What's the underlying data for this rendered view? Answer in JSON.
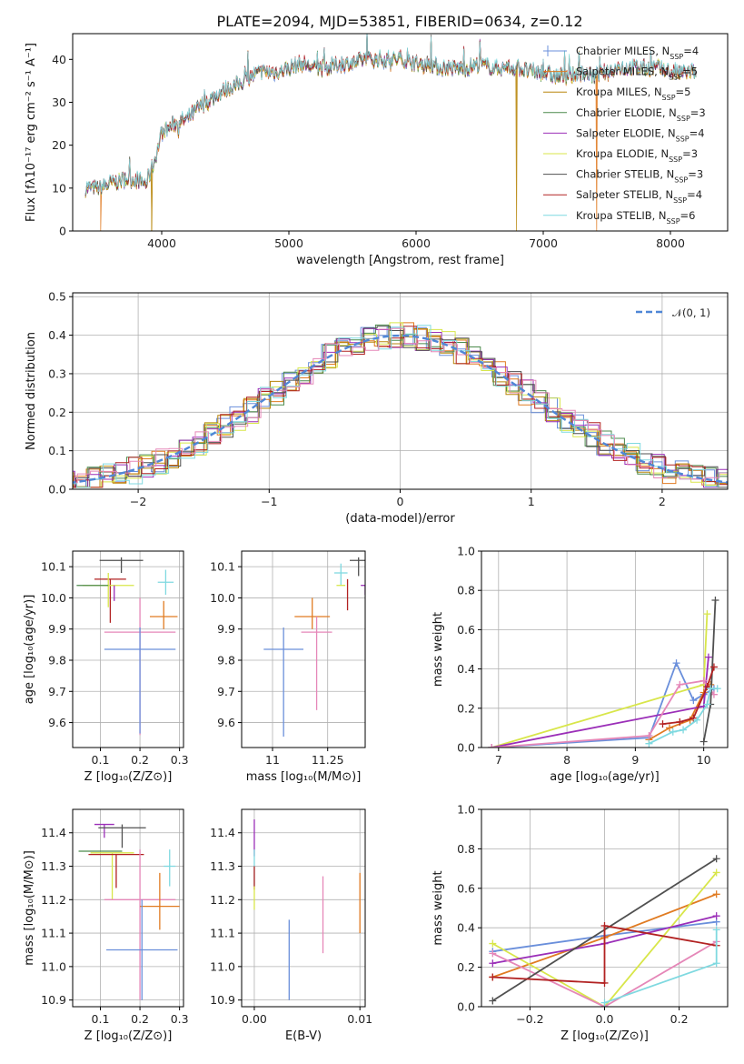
{
  "title": "PLATE=2094, MJD=53851, FIBERID=0634, z=0.12",
  "colors": {
    "Chabrier MILES": "#6a8fdb",
    "Salpeter MILES": "#e07b22",
    "Kroupa MILES": "#b8860b",
    "Chabrier ELODIE": "#4c8a4c",
    "Salpeter ELODIE": "#9b2fb8",
    "Kroupa ELODIE": "#d8e64a",
    "Chabrier STELIB": "#505050",
    "Salpeter STELIB": "#b22222",
    "Kroupa STELIB": "#7fd9e0",
    "Pink": "#e587b8",
    "Normal": "#4f86d6"
  },
  "chart_data": [
    {
      "id": "spectrum",
      "type": "line",
      "xlabel": "wavelength [Angstrom, rest frame]",
      "ylabel": "Flux [fλ10⁻¹⁷ erg cm⁻² s⁻¹ A⁻¹]",
      "xlim": [
        3300,
        8450
      ],
      "ylim": [
        0,
        46
      ],
      "xticks": [
        4000,
        5000,
        6000,
        7000,
        8000
      ],
      "yticks": [
        0,
        10,
        20,
        30,
        40
      ],
      "legend_position": "top-right",
      "legend": [
        "Chabrier MILES, N_SSP=4",
        "Salpeter MILES, N_SSP=5",
        "Kroupa MILES, N_SSP=5",
        "Chabrier ELODIE, N_SSP=3",
        "Salpeter ELODIE, N_SSP=4",
        "Kroupa ELODIE, N_SSP=3",
        "Chabrier STELIB, N_SSP=3",
        "Salpeter STELIB, N_SSP=4",
        "Kroupa STELIB, N_SSP=6"
      ],
      "continuum": [
        [
          3400,
          10
        ],
        [
          3500,
          10
        ],
        [
          3600,
          11
        ],
        [
          3700,
          12
        ],
        [
          3800,
          12
        ],
        [
          3880,
          11
        ],
        [
          3950,
          17
        ],
        [
          4000,
          23
        ],
        [
          4100,
          25
        ],
        [
          4200,
          26
        ],
        [
          4300,
          29
        ],
        [
          4400,
          31
        ],
        [
          4500,
          33
        ],
        [
          4600,
          34
        ],
        [
          4700,
          36
        ],
        [
          4800,
          37
        ],
        [
          4900,
          37
        ],
        [
          5000,
          38
        ],
        [
          5100,
          39
        ],
        [
          5200,
          38
        ],
        [
          5300,
          38
        ],
        [
          5400,
          39
        ],
        [
          5500,
          39
        ],
        [
          5600,
          40
        ],
        [
          5700,
          40
        ],
        [
          5800,
          40
        ],
        [
          5900,
          40
        ],
        [
          6000,
          39
        ],
        [
          6100,
          39
        ],
        [
          6200,
          38
        ],
        [
          6300,
          38
        ],
        [
          6400,
          38
        ],
        [
          6500,
          39
        ],
        [
          6600,
          38
        ],
        [
          6700,
          38
        ],
        [
          6800,
          38
        ],
        [
          6900,
          37
        ],
        [
          7000,
          37
        ],
        [
          7100,
          36
        ],
        [
          7200,
          36
        ],
        [
          7300,
          37
        ],
        [
          7400,
          36
        ],
        [
          7500,
          37
        ],
        [
          7600,
          38
        ],
        [
          7700,
          38
        ],
        [
          7800,
          38
        ],
        [
          7900,
          38
        ],
        [
          8000,
          37
        ],
        [
          8100,
          37
        ],
        [
          8200,
          37
        ]
      ],
      "dropouts": [
        {
          "model": "Salpeter MILES",
          "x": 3520
        },
        {
          "model": "Kroupa MILES",
          "x": 3920
        },
        {
          "model": "Kroupa MILES",
          "x": 6790
        },
        {
          "model": "Salpeter MILES",
          "x": 7420
        }
      ]
    },
    {
      "id": "residuals",
      "type": "histogram",
      "xlabel": "(data-model)/error",
      "ylabel": "Normed distribution",
      "xlim": [
        -2.5,
        2.5
      ],
      "ylim": [
        0,
        0.51
      ],
      "xticks": [
        -2,
        -1,
        0,
        1,
        2
      ],
      "yticks": [
        0.0,
        0.1,
        0.2,
        0.3,
        0.4,
        0.5
      ],
      "legend": [
        "𝒩(0, 1)"
      ],
      "legend_position": "top-right",
      "bin_width": 0.1,
      "reference_curve": "normal(0,1)"
    },
    {
      "id": "age-vs-Z",
      "type": "errorbar",
      "xlabel": "Z [log₁₀(Z/Z⊙)]",
      "ylabel": "age [log₁₀(age/yr)]",
      "xlim": [
        0.03,
        0.31
      ],
      "ylim": [
        9.52,
        10.15
      ],
      "xticks": [
        0.1,
        0.2,
        0.3
      ],
      "yticks": [
        9.6,
        9.7,
        9.8,
        9.9,
        10.0,
        10.1
      ],
      "points": [
        {
          "model": "Chabrier STELIB",
          "x": 0.153,
          "xerr": 0.055,
          "y": 10.12,
          "yerr_lo": 0.04,
          "yerr_hi": 0.01
        },
        {
          "model": "Salpeter STELIB",
          "x": 0.125,
          "xerr": 0.04,
          "y": 10.06,
          "yerr_lo": 0.14,
          "yerr_hi": 0.0
        },
        {
          "model": "Kroupa STELIB",
          "x": 0.265,
          "xerr": 0.02,
          "y": 10.05,
          "yerr_lo": 0.04,
          "yerr_hi": 0.04
        },
        {
          "model": "Kroupa ELODIE",
          "x": 0.12,
          "xerr": 0.065,
          "y": 10.04,
          "yerr_lo": 0.07,
          "yerr_hi": 0.04
        },
        {
          "model": "Chabrier ELODIE",
          "x": 0.08,
          "xerr": 0.04,
          "y": 10.04,
          "yerr_lo": 0.0,
          "yerr_hi": 0.0
        },
        {
          "model": "Salpeter ELODIE",
          "x": 0.135,
          "xerr": 0.0,
          "y": 10.01,
          "yerr_lo": 0.02,
          "yerr_hi": 0.03
        },
        {
          "model": "Salpeter MILES",
          "x": 0.26,
          "xerr": 0.035,
          "y": 9.94,
          "yerr_lo": 0.04,
          "yerr_hi": 0.05
        },
        {
          "model": "Pink",
          "x": 0.2,
          "xerr": 0.09,
          "y": 9.89,
          "yerr_lo": 0.33,
          "yerr_hi": 0.11
        },
        {
          "model": "Chabrier MILES",
          "x": 0.2,
          "xerr": 0.09,
          "y": 9.835,
          "yerr_lo": 0.27,
          "yerr_hi": 0.07
        }
      ]
    },
    {
      "id": "age-vs-mass",
      "type": "errorbar",
      "xlabel": "mass [log₁₀(M/M⊙)]",
      "ylabel": "",
      "xlim": [
        10.86,
        11.42
      ],
      "ylim": [
        9.52,
        10.15
      ],
      "xticks": [
        11.0,
        11.25
      ],
      "yticks": [
        9.6,
        9.7,
        9.8,
        9.9,
        10.0,
        10.1
      ],
      "points": [
        {
          "model": "Chabrier STELIB",
          "x": 11.39,
          "xerr": 0.04,
          "y": 10.12,
          "yerr_lo": 0.05,
          "yerr_hi": 0.01
        },
        {
          "model": "Kroupa STELIB",
          "x": 11.31,
          "xerr": 0.03,
          "y": 10.08,
          "yerr_lo": 0.04,
          "yerr_hi": 0.03
        },
        {
          "model": "Salpeter STELIB",
          "x": 11.34,
          "xerr": 0.0,
          "y": 10.06,
          "yerr_lo": 0.1,
          "yerr_hi": 0.0
        },
        {
          "model": "Kroupa ELODIE",
          "x": 11.31,
          "xerr": 0.02,
          "y": 10.04,
          "yerr_lo": 0.0,
          "yerr_hi": 0.0
        },
        {
          "model": "Salpeter ELODIE",
          "x": 11.42,
          "xerr": 0.02,
          "y": 10.04,
          "yerr_lo": 0.03,
          "yerr_hi": 0.0
        },
        {
          "model": "Salpeter MILES",
          "x": 11.18,
          "xerr": 0.08,
          "y": 9.94,
          "yerr_lo": 0.04,
          "yerr_hi": 0.06
        },
        {
          "model": "Pink",
          "x": 11.2,
          "xerr": 0.07,
          "y": 9.89,
          "yerr_lo": 0.25,
          "yerr_hi": 0.05
        },
        {
          "model": "Chabrier MILES",
          "x": 11.05,
          "xerr": 0.09,
          "y": 9.835,
          "yerr_lo": 0.28,
          "yerr_hi": 0.07
        }
      ]
    },
    {
      "id": "mass-weight-vs-age",
      "type": "line",
      "xlabel": "age [log₁₀(age/yr)]",
      "ylabel": "mass weight",
      "xlim": [
        6.75,
        10.35
      ],
      "ylim": [
        0,
        1.0
      ],
      "xticks": [
        7,
        8,
        9,
        10
      ],
      "yticks": [
        0.0,
        0.2,
        0.4,
        0.6,
        0.8,
        1.0
      ],
      "series": [
        {
          "model": "Chabrier MILES",
          "x": [
            6.9,
            9.2,
            9.6,
            9.85,
            10.0,
            10.15
          ],
          "y": [
            0.0,
            0.05,
            0.43,
            0.24,
            0.27,
            0.3
          ]
        },
        {
          "model": "Salpeter MILES",
          "x": [
            9.2,
            9.5,
            9.8,
            10.0,
            10.1
          ],
          "y": [
            0.04,
            0.1,
            0.14,
            0.28,
            0.32
          ]
        },
        {
          "model": "Kroupa ELODIE",
          "x": [
            6.9,
            10.0,
            10.05
          ],
          "y": [
            0.0,
            0.32,
            0.68
          ]
        },
        {
          "model": "Salpeter ELODIE",
          "x": [
            6.9,
            10.0,
            10.07
          ],
          "y": [
            0.0,
            0.21,
            0.46
          ]
        },
        {
          "model": "Pink",
          "x": [
            6.9,
            9.2,
            9.65,
            10.0,
            10.15
          ],
          "y": [
            0.0,
            0.06,
            0.32,
            0.34,
            0.27
          ]
        },
        {
          "model": "Chabrier STELIB",
          "x": [
            10.0,
            10.1,
            10.17
          ],
          "y": [
            0.03,
            0.22,
            0.75
          ]
        },
        {
          "model": "Salpeter STELIB",
          "x": [
            9.4,
            9.65,
            9.85,
            10.05,
            10.15
          ],
          "y": [
            0.12,
            0.13,
            0.15,
            0.31,
            0.41
          ]
        },
        {
          "model": "Kroupa STELIB",
          "x": [
            9.2,
            9.55,
            9.7,
            9.9,
            10.05,
            10.1,
            10.2
          ],
          "y": [
            0.02,
            0.08,
            0.09,
            0.14,
            0.22,
            0.3,
            0.3
          ]
        }
      ]
    },
    {
      "id": "mass-vs-Z",
      "type": "errorbar",
      "xlabel": "Z [log₁₀(Z/Z⊙)]",
      "ylabel": "mass [log₁₀(M/M⊙)]",
      "xlim": [
        0.03,
        0.31
      ],
      "ylim": [
        10.88,
        11.47
      ],
      "xticks": [
        0.1,
        0.2,
        0.3
      ],
      "yticks": [
        10.9,
        11.0,
        11.1,
        11.2,
        11.3,
        11.4
      ],
      "points": [
        {
          "model": "Salpeter ELODIE",
          "x": 0.11,
          "xerr": 0.025,
          "y": 11.425,
          "yerr_lo": 0.04,
          "yerr_hi": 0.0
        },
        {
          "model": "Chabrier STELIB",
          "x": 0.155,
          "xerr": 0.06,
          "y": 11.415,
          "yerr_lo": 0.06,
          "yerr_hi": 0.01
        },
        {
          "model": "Chabrier ELODIE",
          "x": 0.1,
          "xerr": 0.055,
          "y": 11.345,
          "yerr_lo": 0.0,
          "yerr_hi": 0.0
        },
        {
          "model": "Kroupa ELODIE",
          "x": 0.13,
          "xerr": 0.055,
          "y": 11.34,
          "yerr_lo": 0.14,
          "yerr_hi": 0.0
        },
        {
          "model": "Salpeter STELIB",
          "x": 0.14,
          "xerr": 0.07,
          "y": 11.335,
          "yerr_lo": 0.1,
          "yerr_hi": 0.0
        },
        {
          "model": "Kroupa STELIB",
          "x": 0.275,
          "xerr": 0.015,
          "y": 11.3,
          "yerr_lo": 0.06,
          "yerr_hi": 0.05
        },
        {
          "model": "Pink",
          "x": 0.2,
          "xerr": 0.09,
          "y": 11.2,
          "yerr_lo": 0.3,
          "yerr_hi": 0.15
        },
        {
          "model": "Salpeter MILES",
          "x": 0.25,
          "xerr": 0.05,
          "y": 11.18,
          "yerr_lo": 0.07,
          "yerr_hi": 0.1
        },
        {
          "model": "Chabrier MILES",
          "x": 0.205,
          "xerr": 0.09,
          "y": 11.05,
          "yerr_lo": 0.15,
          "yerr_hi": 0.15
        }
      ]
    },
    {
      "id": "mass-vs-EBV",
      "type": "errorbar",
      "xlabel": "E(B-V)",
      "ylabel": "",
      "xlim": [
        -0.0012,
        0.0105
      ],
      "ylim": [
        10.88,
        11.47
      ],
      "xticks": [
        0.0,
        0.01
      ],
      "xtick_labels": [
        "0.00",
        "0.01"
      ],
      "yticks": [
        10.9,
        11.0,
        11.1,
        11.2,
        11.3,
        11.4
      ],
      "points": [
        {
          "model": "Salpeter ELODIE",
          "x": 0.0,
          "xerr": 0.0,
          "y": 11.38,
          "yerr_lo": 0.05,
          "yerr_hi": 0.06
        },
        {
          "model": "Kroupa STELIB",
          "x": 0.0,
          "xerr": 0.0,
          "y": 11.3,
          "yerr_lo": 0.06,
          "yerr_hi": 0.05
        },
        {
          "model": "Salpeter STELIB",
          "x": 0.0,
          "xerr": 0.0,
          "y": 11.27,
          "yerr_lo": 0.04,
          "yerr_hi": 0.03
        },
        {
          "model": "Kroupa ELODIE",
          "x": 0.0,
          "xerr": 0.0,
          "y": 11.2,
          "yerr_lo": 0.03,
          "yerr_hi": 0.04
        },
        {
          "model": "Chabrier MILES",
          "x": 0.0033,
          "xerr": 0.0,
          "y": 11.02,
          "yerr_lo": 0.12,
          "yerr_hi": 0.12
        },
        {
          "model": "Pink",
          "x": 0.0065,
          "xerr": 0.0,
          "y": 11.15,
          "yerr_lo": 0.11,
          "yerr_hi": 0.12
        },
        {
          "model": "Salpeter MILES",
          "x": 0.01,
          "xerr": 0.0,
          "y": 11.19,
          "yerr_lo": 0.09,
          "yerr_hi": 0.09
        }
      ]
    },
    {
      "id": "mass-weight-vs-Z",
      "type": "line",
      "xlabel": "Z [log₁₀(Z/Z⊙)]",
      "ylabel": "mass weight",
      "xlim": [
        -0.33,
        0.33
      ],
      "ylim": [
        0,
        1.0
      ],
      "xticks": [
        -0.2,
        0.0,
        0.2
      ],
      "xtick_labels": [
        "−0.2",
        "0.0",
        "0.2"
      ],
      "yticks": [
        0.0,
        0.2,
        0.4,
        0.6,
        0.8,
        1.0
      ],
      "series": [
        {
          "model": "Chabrier MILES",
          "x": [
            -0.3,
            0.0,
            0.3
          ],
          "y": [
            0.28,
            0.36,
            0.43
          ]
        },
        {
          "model": "Salpeter MILES",
          "x": [
            -0.3,
            0.0,
            0.3
          ],
          "y": [
            0.15,
            0.35,
            0.57
          ]
        },
        {
          "model": "Kroupa ELODIE",
          "x": [
            -0.3,
            0.0,
            0.3
          ],
          "y": [
            0.32,
            0.0,
            0.68
          ]
        },
        {
          "model": "Salpeter ELODIE",
          "x": [
            -0.3,
            0.0,
            0.3
          ],
          "y": [
            0.22,
            0.32,
            0.46
          ]
        },
        {
          "model": "Pink",
          "x": [
            -0.3,
            0.0,
            0.3
          ],
          "y": [
            0.27,
            0.0,
            0.33
          ]
        },
        {
          "model": "Chabrier STELIB",
          "x": [
            -0.3,
            0.3
          ],
          "y": [
            0.03,
            0.75
          ]
        },
        {
          "model": "Salpeter STELIB",
          "x": [
            -0.3,
            0.0,
            0.0,
            0.3
          ],
          "y": [
            0.15,
            0.12,
            0.41,
            0.31
          ]
        },
        {
          "model": "Kroupa STELIB",
          "x": [
            0.0,
            0.3,
            0.3
          ],
          "y": [
            0.02,
            0.22,
            0.39
          ]
        }
      ]
    }
  ]
}
